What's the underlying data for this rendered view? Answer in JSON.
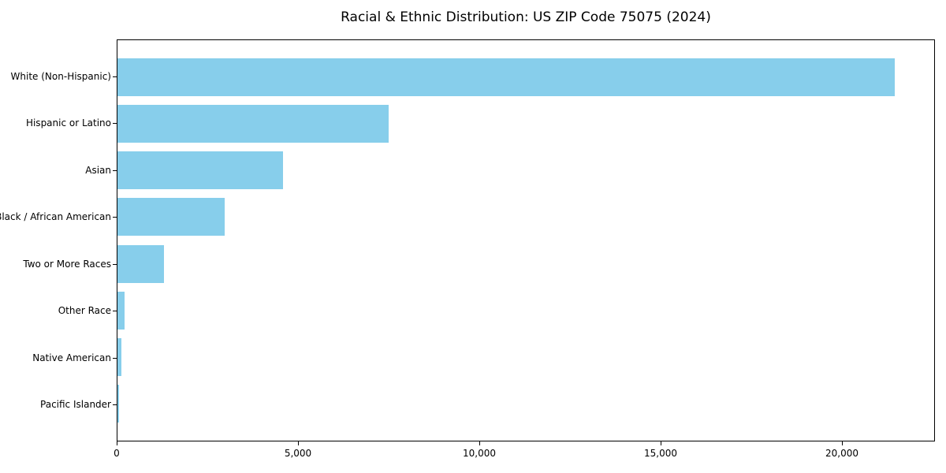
{
  "title": "Racial & Ethnic Distribution: US ZIP Code 75075 (2024)",
  "colors": {
    "bar": "#87CEEB",
    "axis": "#000000",
    "background": "#FFFFFF",
    "text": "#000000"
  },
  "chart_data": {
    "type": "bar",
    "orientation": "horizontal",
    "title": "Racial & Ethnic Distribution: US ZIP Code 75075 (2024)",
    "categories": [
      "White (Non-Hispanic)",
      "Hispanic or Latino",
      "Asian",
      "Black / African American",
      "Two or More Races",
      "Other Race",
      "Native American",
      "Pacific Islander"
    ],
    "values": [
      21470,
      7490,
      4580,
      2970,
      1280,
      200,
      100,
      50
    ],
    "xlabel": "",
    "ylabel": "",
    "xlim": [
      0,
      22565
    ],
    "xticks": [
      0,
      5000,
      10000,
      15000,
      20000
    ],
    "xtick_labels": [
      "0",
      "5,000",
      "10,000",
      "15,000",
      "20,000"
    ],
    "grid": false,
    "legend": null,
    "bar_color": "#87CEEB"
  }
}
